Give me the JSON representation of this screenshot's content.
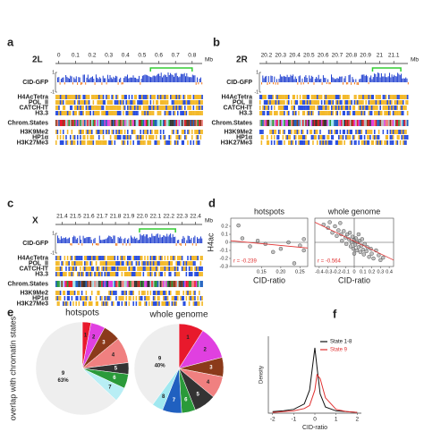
{
  "chart_data": [
    {
      "type": "genome-tracks",
      "panel": "a",
      "title": "2L",
      "unit": "Mb",
      "xlim": [
        -0.02,
        0.86
      ],
      "xticks": [
        0,
        0.1,
        0.2,
        0.3,
        0.4,
        0.5,
        0.6,
        0.7,
        0.8
      ],
      "highlight": [
        0.55,
        0.8
      ],
      "highlight_color": "#33cc33",
      "cid_label": "CID-GFP",
      "ylim": [
        -1,
        1
      ],
      "yticks": [
        -1,
        1
      ],
      "tracks": [
        "H4AcTetra",
        "POL_II",
        "CATCH-IT",
        "H3.3",
        "Chrom.States",
        "H3K9Me2",
        "HP1α",
        "H3K27Me3"
      ]
    },
    {
      "type": "genome-tracks",
      "panel": "b",
      "title": "2R",
      "unit": "Mb",
      "xlim": [
        20.15,
        21.2
      ],
      "xticks": [
        20.2,
        20.3,
        20.4,
        20.5,
        20.6,
        20.7,
        20.8,
        20.9,
        21.0,
        21.1
      ],
      "highlight": [
        20.95,
        21.15
      ],
      "highlight_color": "#33cc33",
      "cid_label": "CID-GFP",
      "ylim": [
        -1,
        1
      ],
      "yticks": [
        -1,
        1
      ],
      "tracks": [
        "H4AcTetra",
        "POL_II",
        "CATCH-IT",
        "H3.3",
        "Chrom.States",
        "H3K9Me2",
        "HP1α",
        "H3K27Me3"
      ]
    },
    {
      "type": "genome-tracks",
      "panel": "c",
      "title": "X",
      "unit": "Mb",
      "xlim": [
        21.35,
        22.45
      ],
      "xticks": [
        21.4,
        21.5,
        21.6,
        21.7,
        21.8,
        21.9,
        {
          "value": 22.0,
          "label": "22.0"
        },
        22.1,
        22.2,
        22.3,
        22.4
      ],
      "highlight": [
        21.98,
        22.25
      ],
      "highlight_color": "#33cc33",
      "cid_label": "CID-GFP",
      "ylim": [
        -1,
        1
      ],
      "yticks": [
        -1,
        1
      ],
      "tracks": [
        "H4AcTetra",
        "POL_II",
        "CATCH-IT",
        "H3.3",
        "Chrom.States",
        "H3K9Me2",
        "HP1α",
        "H3K27Me3"
      ]
    },
    {
      "type": "scatter",
      "panel": "d",
      "title": "hotspots",
      "x_label": "CID-ratio",
      "y_label": "H4ac",
      "color": "#999999",
      "x": [
        0.09,
        0.1,
        0.12,
        0.14,
        0.16,
        0.18,
        0.2,
        0.22,
        0.235,
        0.25,
        0.26,
        0.26
      ],
      "y": [
        0.21,
        0.05,
        -0.05,
        0.02,
        -0.02,
        -0.12,
        -0.08,
        0.0,
        -0.26,
        -0.04,
        -0.1,
        0.04
      ],
      "xlim": [
        0.07,
        0.27
      ],
      "ylim": [
        -0.3,
        0.3
      ],
      "xticks": [
        0.15,
        {
          "value": 0.2,
          "label": "0.20"
        },
        0.25
      ],
      "yticks": [
        -0.3,
        -0.2,
        -0.1,
        0,
        0.1,
        0.2
      ],
      "fit": {
        "x": [
          0.07,
          0.27
        ],
        "y": [
          0.02,
          -0.07
        ],
        "color": "#e03030"
      },
      "annotation": "r = -0.239"
    },
    {
      "type": "scatter",
      "title": "whole genome",
      "x_label": "CID-ratio",
      "color": "#999999",
      "x": [
        -0.35,
        -0.3,
        -0.28,
        -0.25,
        -0.22,
        -0.2,
        -0.18,
        -0.15,
        -0.14,
        -0.12,
        -0.1,
        -0.09,
        -0.08,
        -0.06,
        -0.05,
        -0.04,
        -0.03,
        -0.02,
        -0.01,
        0,
        0.01,
        0.02,
        0.03,
        0.04,
        0.05,
        0.06,
        0.07,
        0.08,
        0.09,
        0.1,
        0.11,
        0.12,
        0.14,
        0.15,
        0.17,
        0.19,
        0.2,
        0.22,
        0.25,
        0.28,
        0.3,
        0.33,
        -0.16,
        0.0,
        0.05
      ],
      "y": [
        0.22,
        0.18,
        0.25,
        0.12,
        0.2,
        0.08,
        0.15,
        0.1,
        0.02,
        0.14,
        0.06,
        -0.02,
        0.1,
        0.04,
        0.12,
        -0.05,
        0.0,
        0.07,
        -0.08,
        0.03,
        -0.03,
        0.05,
        -0.1,
        0.0,
        -0.06,
        0.02,
        -0.12,
        -0.04,
        0.04,
        -0.09,
        -0.15,
        -0.02,
        -0.11,
        -0.06,
        -0.18,
        -0.08,
        -0.14,
        -0.2,
        -0.1,
        -0.16,
        -0.22,
        -0.19,
        0.24,
        -0.14,
        0.1
      ],
      "xlim": [
        -0.45,
        0.45
      ],
      "ylim": [
        -0.3,
        0.3
      ],
      "xticks": [
        -0.4,
        -0.3,
        -0.2,
        -0.1,
        0,
        0.1,
        0.2,
        0.3,
        0.4
      ],
      "fit": {
        "x": [
          -0.45,
          0.45
        ],
        "y": [
          0.25,
          -0.22
        ],
        "color": "#e03030"
      },
      "annotation": "r = -0.564"
    },
    {
      "type": "pie",
      "panel": "e",
      "title": "hotspots",
      "y_label": "overlap with chromatin states",
      "categories": [
        "1",
        "2",
        "3",
        "4",
        "5",
        "6",
        "7",
        "9"
      ],
      "values": [
        3,
        5,
        6,
        9,
        4,
        5,
        5,
        63
      ],
      "value_labels": [
        null,
        null,
        null,
        null,
        null,
        null,
        null,
        "63%"
      ],
      "colors": [
        "#e8192c",
        "#e040e0",
        "#8b3a1a",
        "#f08080",
        "#333333",
        "#2a9a3a",
        "#b8eef5",
        "#eeeeee"
      ]
    },
    {
      "type": "pie",
      "title": "whole genome",
      "categories": [
        "1",
        "2",
        "3",
        "4",
        "5",
        "6",
        "7",
        "8",
        "9"
      ],
      "values": [
        9,
        12,
        7,
        8,
        8,
        5,
        7,
        4,
        40
      ],
      "value_labels": [
        null,
        null,
        null,
        null,
        null,
        null,
        null,
        null,
        "40%"
      ],
      "colors": [
        "#e8192c",
        "#e040e0",
        "#8b3a1a",
        "#f08080",
        "#333333",
        "#2a9a3a",
        "#2060c0",
        "#a0e8f0",
        "#eeeeee"
      ]
    },
    {
      "type": "line",
      "panel": "f",
      "x_label": "CID-ratio",
      "y_label": "Density",
      "legend": "upper right",
      "x": [
        -2,
        -1.5,
        -1,
        -0.5,
        -0.25,
        0,
        0.1,
        0.25,
        0.5,
        1,
        1.5,
        2
      ],
      "series": [
        {
          "name": "State 1-8",
          "color": "#111111",
          "values": [
            0.02,
            0.03,
            0.05,
            0.12,
            0.3,
            0.85,
            0.6,
            0.25,
            0.08,
            0.03,
            0.02,
            0.01
          ]
        },
        {
          "name": "State 9",
          "color": "#e03030",
          "values": [
            0.01,
            0.02,
            0.03,
            0.06,
            0.1,
            0.3,
            0.5,
            0.45,
            0.2,
            0.05,
            0.02,
            0.01
          ]
        }
      ],
      "xlim": [
        -2.2,
        2.2
      ],
      "ylim": [
        0,
        1
      ],
      "xticks": [
        -2,
        -1,
        0,
        1,
        2
      ]
    }
  ]
}
